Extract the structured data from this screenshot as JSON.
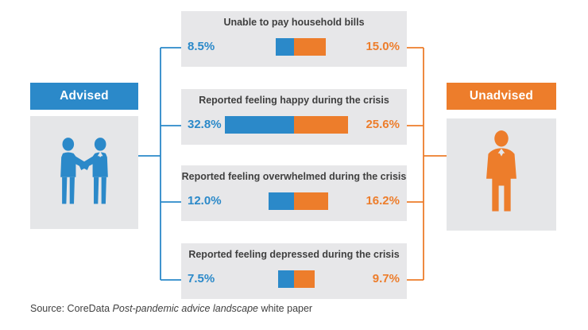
{
  "left_panel": {
    "label": "Advised",
    "icon": "handshake-icon"
  },
  "right_panel": {
    "label": "Unadvised",
    "icon": "businessman-icon"
  },
  "cards": [
    {
      "title": "Unable to pay household bills",
      "advised_label": "8.5%",
      "unadvised_label": "15.0%"
    },
    {
      "title": "Reported feeling happy during the crisis",
      "advised_label": "32.8%",
      "unadvised_label": "25.6%"
    },
    {
      "title": "Reported feeling overwhelmed during the crisis",
      "advised_label": "12.0%",
      "unadvised_label": "16.2%"
    },
    {
      "title": "Reported feeling depressed during the crisis",
      "advised_label": "7.5%",
      "unadvised_label": "9.7%"
    }
  ],
  "chart_data": {
    "type": "bar",
    "subtype": "paired-diverging-horizontal",
    "categories": [
      "Unable to pay household bills",
      "Reported feeling happy during the crisis",
      "Reported feeling overwhelmed during the crisis",
      "Reported feeling depressed during the crisis"
    ],
    "series": [
      {
        "name": "Advised",
        "color": "#2B89C9",
        "values": [
          8.5,
          32.8,
          12.0,
          7.5
        ]
      },
      {
        "name": "Unadvised",
        "color": "#ED7D2B",
        "values": [
          15.0,
          25.6,
          16.2,
          9.7
        ]
      }
    ],
    "value_format": "percent",
    "legend_position": "sides",
    "grid": false
  },
  "colors": {
    "advised_blue": "#2B89C9",
    "unadvised_orange": "#ED7D2B",
    "card_background": "#E7E7E9",
    "panel_background": "#E5E6E8",
    "title_text": "#3F3F3F"
  },
  "source": {
    "prefix": "Source: CoreData ",
    "italic": "Post-pandemic advice landscape",
    "suffix": " white paper"
  }
}
